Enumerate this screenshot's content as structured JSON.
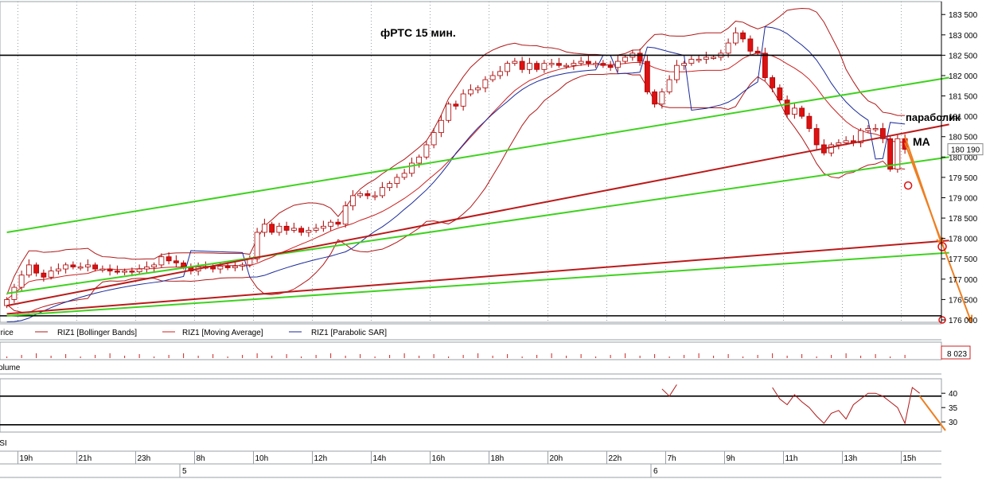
{
  "colors": {
    "background": "#ffffff",
    "grid": "#9aa0a6",
    "candle_up": "#ffffff",
    "candle_down": "#dd1111",
    "candle_outline": "#aa0000",
    "bollinger": "#b01818",
    "moving_average": "#cc2020",
    "parabolic_sar": "#1a2a9a",
    "trend_red": "#bb1a1a",
    "trend_green": "#3ed21e",
    "level_line": "#000000",
    "forecast": "#ee7f22",
    "rsi": "#b01818"
  },
  "chart_data": {
    "type": "candlestick",
    "title": "фРТС   15 мин.",
    "y_axis": {
      "min": 176000,
      "max": 183700,
      "ticks": [
        176000,
        176500,
        177000,
        177500,
        178000,
        178500,
        179000,
        179500,
        180000,
        180500,
        181000,
        181500,
        182000,
        182500,
        183000,
        183500
      ],
      "tick_labels": [
        "176 000",
        "176 500",
        "177 000",
        "177 500",
        "178 000",
        "178 500",
        "179 000",
        "179 500",
        "180 000",
        "180 500",
        "181 000",
        "181 500",
        "182 000",
        "182 500",
        "183 000",
        "183 500"
      ]
    },
    "last_price": {
      "value": 180190,
      "label": "180 190"
    },
    "time_axis": {
      "hour_labels": [
        "19h",
        "21h",
        "23h",
        "8h",
        "10h",
        "12h",
        "14h",
        "16h",
        "18h",
        "20h",
        "22h",
        "7h",
        "9h",
        "11h",
        "13h",
        "15h"
      ],
      "hour_label_slots": [
        2,
        10,
        18,
        26,
        34,
        42,
        50,
        58,
        66,
        74,
        82,
        90,
        98,
        106,
        114,
        122
      ],
      "day_labels": [
        "5",
        "6"
      ],
      "day_label_slots": [
        24,
        88
      ]
    },
    "candles": {
      "close": [
        176500,
        176800,
        177100,
        177350,
        177150,
        177050,
        177200,
        177250,
        177350,
        177300,
        177300,
        177350,
        177250,
        177250,
        177200,
        177180,
        177200,
        177180,
        177250,
        177300,
        177350,
        177550,
        177450,
        177400,
        177300,
        177200,
        177300,
        177300,
        177250,
        177320,
        177280,
        177320,
        177350,
        177500,
        178150,
        178350,
        178150,
        178300,
        178200,
        178250,
        178150,
        178200,
        178250,
        178300,
        178400,
        178350,
        178800,
        179050,
        179100,
        179050,
        179050,
        179250,
        179350,
        179500,
        179600,
        179850,
        180000,
        180300,
        180600,
        180900,
        181300,
        181250,
        181550,
        181650,
        181700,
        181900,
        182000,
        182100,
        182300,
        182350,
        182150,
        182300,
        182150,
        182300,
        182300,
        182250,
        182250,
        182300,
        182350,
        182300,
        182300,
        182250,
        182200,
        182350,
        182450,
        182550,
        182350,
        181600,
        181300,
        181600,
        181900,
        182250,
        182300,
        182400,
        182400,
        182450,
        182450,
        182550,
        182800,
        183050,
        182900,
        182600,
        182550,
        181950,
        181700,
        181400,
        181050,
        181200,
        181000,
        180700,
        180300,
        180100,
        180300,
        180350,
        180400,
        180350,
        180650,
        180700,
        180700,
        180450,
        179700,
        180450,
        180190
      ],
      "candle_count": 123
    },
    "series": [
      {
        "name": "RIZ1 [Bollinger Bands]"
      },
      {
        "name": "RIZ1 [Moving Average]"
      },
      {
        "name": "RIZ1 [Parabolic SAR]"
      }
    ],
    "annotations": [
      {
        "text": "параболик"
      },
      {
        "text": "MA"
      }
    ],
    "levels": [
      {
        "kind": "horizontal",
        "value": 182500
      },
      {
        "kind": "horizontal",
        "value": 176100
      }
    ],
    "trend_lines": [
      {
        "color": "green",
        "points": [
          [
            0,
            178150
          ],
          [
            128,
            181950
          ]
        ]
      },
      {
        "color": "green",
        "points": [
          [
            0,
            176650
          ],
          [
            128,
            180000
          ]
        ]
      },
      {
        "color": "green",
        "points": [
          [
            0,
            176100
          ],
          [
            128,
            177650
          ]
        ]
      },
      {
        "color": "red",
        "points": [
          [
            0,
            176350
          ],
          [
            128,
            180800
          ]
        ]
      },
      {
        "color": "red",
        "points": [
          [
            0,
            176150
          ],
          [
            128,
            177950
          ]
        ]
      }
    ],
    "forecast": [
      {
        "points": [
          [
            122,
            180350
          ],
          [
            131,
            175950
          ]
        ]
      },
      {
        "points": [
          [
            122,
            180500
          ],
          [
            127,
            177850
          ]
        ]
      }
    ],
    "volume": {
      "label": "Volume",
      "last_value": "8 023"
    },
    "rsi": {
      "label": "RSI",
      "ticks": [
        30,
        35,
        40
      ],
      "levels": [
        39,
        29
      ],
      "values": [
        [
          89,
          41.5
        ],
        [
          90,
          39
        ],
        [
          91,
          43
        ],
        [
          104,
          42
        ],
        [
          105,
          38
        ],
        [
          106,
          36
        ],
        [
          107,
          39.5
        ],
        [
          108,
          37
        ],
        [
          109,
          35
        ],
        [
          110,
          32
        ],
        [
          111,
          29.5
        ],
        [
          112,
          33
        ],
        [
          113,
          34
        ],
        [
          114,
          31
        ],
        [
          115,
          36
        ],
        [
          116,
          38
        ],
        [
          117,
          40
        ],
        [
          118,
          40
        ],
        [
          119,
          39
        ],
        [
          120,
          37
        ],
        [
          121,
          35
        ],
        [
          122,
          29.5
        ],
        [
          123,
          42
        ],
        [
          124,
          40
        ]
      ],
      "forecast": [
        [
          124,
          39
        ],
        [
          132,
          27
        ]
      ]
    }
  },
  "legend": {
    "price_label": "Price",
    "bollinger": "RIZ1 [Bollinger Bands]",
    "moving_average": "RIZ1 [Moving Average]",
    "parabolic_sar": "RIZ1 [Parabolic SAR]"
  }
}
